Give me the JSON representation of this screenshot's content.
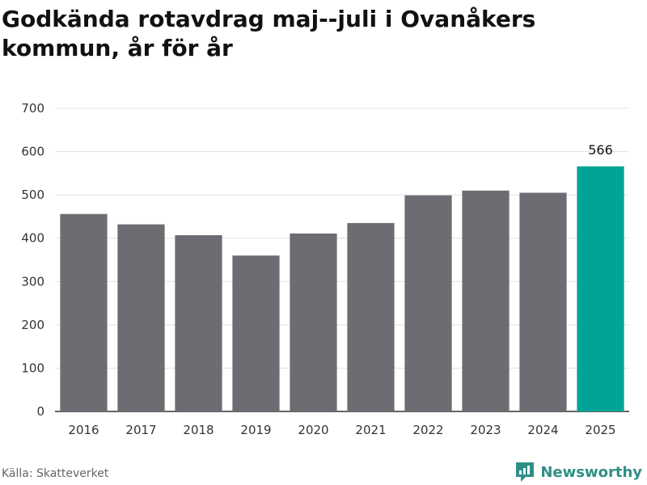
{
  "title": "Godkända rotavdrag maj--juli i Ovanåkers kommun, år för år",
  "source": "Källa: Skatteverket",
  "brand": {
    "name": "Newsworthy",
    "icon": "newsworthy-logo-icon"
  },
  "colors": {
    "bar": "#6d6c72",
    "highlight": "#00a398",
    "grid": "#e0e0e0",
    "axis": "#333333"
  },
  "chart_data": {
    "type": "bar",
    "title": "Godkända rotavdrag maj--juli i Ovanåkers kommun, år för år",
    "categories": [
      "2016",
      "2017",
      "2018",
      "2019",
      "2020",
      "2021",
      "2022",
      "2023",
      "2024",
      "2025"
    ],
    "values": [
      456,
      432,
      407,
      360,
      411,
      435,
      499,
      510,
      505,
      566
    ],
    "highlight_index": 9,
    "data_labels": [
      {
        "index": 9,
        "text": "566"
      }
    ],
    "ylim": [
      0,
      700
    ],
    "yticks": [
      0,
      100,
      200,
      300,
      400,
      500,
      600,
      700
    ],
    "xlabel": "",
    "ylabel": "",
    "grid": true
  }
}
